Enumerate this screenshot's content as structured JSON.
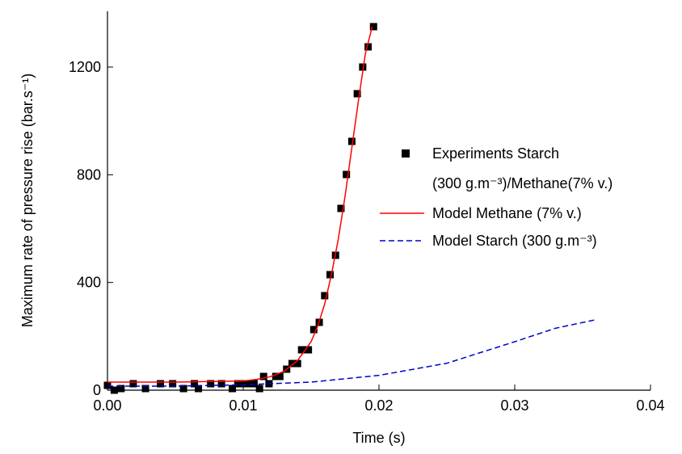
{
  "chart_data": {
    "type": "scatter",
    "x_label": "Time (s)",
    "y_label": "Maximum rate of pressure rise (bar.s⁻¹)",
    "xlim": [
      0,
      0.04
    ],
    "ylim": [
      0,
      1407
    ],
    "xticks": [
      {
        "value": 0,
        "label": "0.00"
      },
      0.01,
      0.02,
      0.03,
      0.04
    ],
    "yticks": [
      0,
      400,
      800,
      1200
    ],
    "legend": "right",
    "series": [
      {
        "name": "Experiments Starch (300 g.m⁻³)/Methane(7% v.)",
        "color": "#000000",
        "marker": "square",
        "x": [
          0,
          0.0005,
          0.001,
          0.0019,
          0.0028,
          0.0039,
          0.0048,
          0.0056,
          0.0064,
          0.0067,
          0.0076,
          0.0084,
          0.0092,
          0.0096,
          0.01,
          0.0104,
          0.0108,
          0.0112,
          0.0115,
          0.0119,
          0.0124,
          0.0127,
          0.0132,
          0.0136,
          0.014,
          0.0143,
          0.0148,
          0.0152,
          0.0156,
          0.016,
          0.0164,
          0.0168,
          0.0172,
          0.0176,
          0.018,
          0.0184,
          0.0188,
          0.0192,
          0.0196
        ],
        "values": [
          18,
          0,
          6,
          24,
          6,
          24,
          24,
          6,
          24,
          6,
          24,
          24,
          6,
          24,
          24,
          24,
          24,
          6,
          51,
          24,
          51,
          51,
          78,
          99,
          99,
          150,
          150,
          225,
          252,
          351,
          429,
          501,
          675,
          801,
          924,
          1101,
          1200,
          1275,
          1350
        ]
      },
      {
        "name": "Model Methane (7% v.)",
        "color": "#ff0000",
        "line": "solid",
        "x": [
          0,
          0.005,
          0.01,
          0.011,
          0.012,
          0.013,
          0.014,
          0.015,
          0.0155,
          0.016,
          0.0165,
          0.017,
          0.0175,
          0.018,
          0.0185,
          0.019,
          0.0195
        ],
        "values": [
          30,
          30,
          34,
          40,
          50,
          70,
          110,
          180,
          240,
          320,
          430,
          560,
          720,
          900,
          1080,
          1250,
          1350
        ]
      },
      {
        "name": "Model Starch (300 g.m⁻³)",
        "color": "#0000cc",
        "line": "dashed",
        "x": [
          0,
          0.005,
          0.01,
          0.015,
          0.02,
          0.025,
          0.03,
          0.033,
          0.036
        ],
        "values": [
          15,
          15,
          20,
          30,
          55,
          100,
          180,
          230,
          262
        ]
      }
    ]
  }
}
